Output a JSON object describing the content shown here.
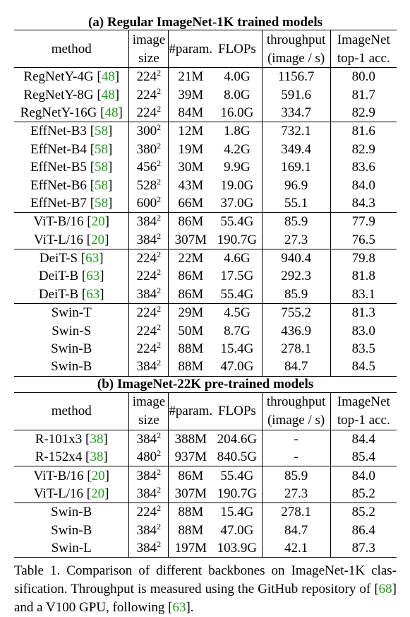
{
  "sections": [
    {
      "title": "(a) Regular ImageNet-1K trained models",
      "groups": [
        [
          {
            "name": "RegNetY-4G",
            "cite": "48",
            "size": "224",
            "param": "21M",
            "flops": "4.0G",
            "throughput": "1156.7",
            "acc": "80.0"
          },
          {
            "name": "RegNetY-8G",
            "cite": "48",
            "size": "224",
            "param": "39M",
            "flops": "8.0G",
            "throughput": "591.6",
            "acc": "81.7"
          },
          {
            "name": "RegNetY-16G",
            "cite": "48",
            "size": "224",
            "param": "84M",
            "flops": "16.0G",
            "throughput": "334.7",
            "acc": "82.9"
          }
        ],
        [
          {
            "name": "EffNet-B3",
            "cite": "58",
            "size": "300",
            "param": "12M",
            "flops": "1.8G",
            "throughput": "732.1",
            "acc": "81.6"
          },
          {
            "name": "EffNet-B4",
            "cite": "58",
            "size": "380",
            "param": "19M",
            "flops": "4.2G",
            "throughput": "349.4",
            "acc": "82.9"
          },
          {
            "name": "EffNet-B5",
            "cite": "58",
            "size": "456",
            "param": "30M",
            "flops": "9.9G",
            "throughput": "169.1",
            "acc": "83.6"
          },
          {
            "name": "EffNet-B6",
            "cite": "58",
            "size": "528",
            "param": "43M",
            "flops": "19.0G",
            "throughput": "96.9",
            "acc": "84.0"
          },
          {
            "name": "EffNet-B7",
            "cite": "58",
            "size": "600",
            "param": "66M",
            "flops": "37.0G",
            "throughput": "55.1",
            "acc": "84.3"
          }
        ],
        [
          {
            "name": "ViT-B/16",
            "cite": "20",
            "size": "384",
            "param": "86M",
            "flops": "55.4G",
            "throughput": "85.9",
            "acc": "77.9"
          },
          {
            "name": "ViT-L/16",
            "cite": "20",
            "size": "384",
            "param": "307M",
            "flops": "190.7G",
            "throughput": "27.3",
            "acc": "76.5"
          }
        ],
        [
          {
            "name": "DeiT-S",
            "cite": "63",
            "size": "224",
            "param": "22M",
            "flops": "4.6G",
            "throughput": "940.4",
            "acc": "79.8"
          },
          {
            "name": "DeiT-B",
            "cite": "63",
            "size": "224",
            "param": "86M",
            "flops": "17.5G",
            "throughput": "292.3",
            "acc": "81.8"
          },
          {
            "name": "DeiT-B",
            "cite": "63",
            "size": "384",
            "param": "86M",
            "flops": "55.4G",
            "throughput": "85.9",
            "acc": "83.1"
          }
        ],
        [
          {
            "name": "Swin-T",
            "cite": "",
            "size": "224",
            "param": "29M",
            "flops": "4.5G",
            "throughput": "755.2",
            "acc": "81.3"
          },
          {
            "name": "Swin-S",
            "cite": "",
            "size": "224",
            "param": "50M",
            "flops": "8.7G",
            "throughput": "436.9",
            "acc": "83.0"
          },
          {
            "name": "Swin-B",
            "cite": "",
            "size": "224",
            "param": "88M",
            "flops": "15.4G",
            "throughput": "278.1",
            "acc": "83.5"
          },
          {
            "name": "Swin-B",
            "cite": "",
            "size": "384",
            "param": "88M",
            "flops": "47.0G",
            "throughput": "84.7",
            "acc": "84.5"
          }
        ]
      ]
    },
    {
      "title": "(b) ImageNet-22K pre-trained models",
      "groups": [
        [
          {
            "name": "R-101x3",
            "cite": "38",
            "size": "384",
            "param": "388M",
            "flops": "204.6G",
            "throughput": "-",
            "acc": "84.4"
          },
          {
            "name": "R-152x4",
            "cite": "38",
            "size": "480",
            "param": "937M",
            "flops": "840.5G",
            "throughput": "-",
            "acc": "85.4"
          }
        ],
        [
          {
            "name": "ViT-B/16",
            "cite": "20",
            "size": "384",
            "param": "86M",
            "flops": "55.4G",
            "throughput": "85.9",
            "acc": "84.0"
          },
          {
            "name": "ViT-L/16",
            "cite": "20",
            "size": "384",
            "param": "307M",
            "flops": "190.7G",
            "throughput": "27.3",
            "acc": "85.2"
          }
        ],
        [
          {
            "name": "Swin-B",
            "cite": "",
            "size": "224",
            "param": "88M",
            "flops": "15.4G",
            "throughput": "278.1",
            "acc": "85.2"
          },
          {
            "name": "Swin-B",
            "cite": "",
            "size": "384",
            "param": "88M",
            "flops": "47.0G",
            "throughput": "84.7",
            "acc": "86.4"
          },
          {
            "name": "Swin-L",
            "cite": "",
            "size": "384",
            "param": "197M",
            "flops": "103.9G",
            "throughput": "42.1",
            "acc": "87.3"
          }
        ]
      ]
    }
  ],
  "headers": {
    "method": "method",
    "size_1": "image",
    "size_2": "size",
    "param": "#param.",
    "flops": "FLOPs",
    "throughput_1": "throughput",
    "throughput_2": "(image / s)",
    "acc_1": "ImageNet",
    "acc_2": "top-1 acc.",
    "size_exponent": "2"
  },
  "caption": {
    "text_1": "Table 1. Comparison of different backbones on ImageNet-1K clas-sification. Throughput is measured using the GitHub repository of [",
    "cite_1": "68",
    "text_2": "] and a V100 GPU, following [",
    "cite_2": "63",
    "text_3": "]."
  },
  "colors": {
    "citation": "#1a9e1a",
    "text": "#000000"
  }
}
